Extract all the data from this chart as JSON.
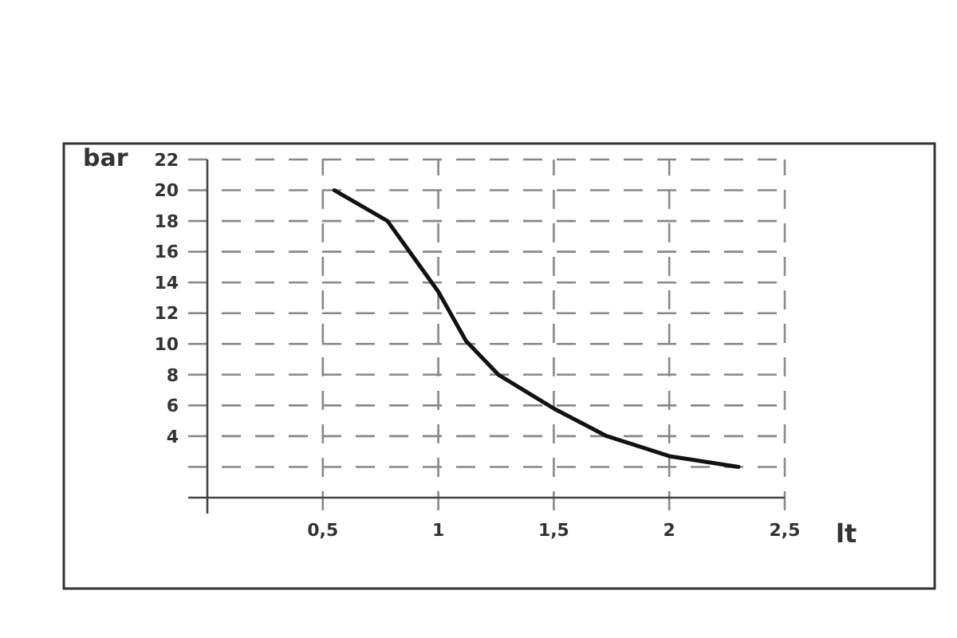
{
  "chart_data": {
    "type": "line",
    "ylabel": "bar",
    "xlabel": "lt",
    "x": [
      0.55,
      0.78,
      1.0,
      1.12,
      1.26,
      1.5,
      1.73,
      2.0,
      2.3
    ],
    "series": [
      {
        "color": "#111111",
        "values": [
          20,
          18,
          13.4,
          10.2,
          8,
          5.8,
          4,
          2.7,
          2
        ]
      }
    ],
    "xlim": [
      0,
      2.5
    ],
    "ylim": [
      0,
      22
    ],
    "xticks": [
      {
        "value": 0.5,
        "label": "0,5"
      },
      1,
      {
        "value": 1.5,
        "label": "1,5"
      },
      2,
      {
        "value": 2.5,
        "label": "2,5"
      }
    ],
    "yticks": [
      {
        "value": 2,
        "label": null
      },
      4,
      6,
      8,
      10,
      12,
      14,
      16,
      18,
      20,
      22
    ],
    "grid": true,
    "line_style": "solid",
    "marker": "none"
  }
}
